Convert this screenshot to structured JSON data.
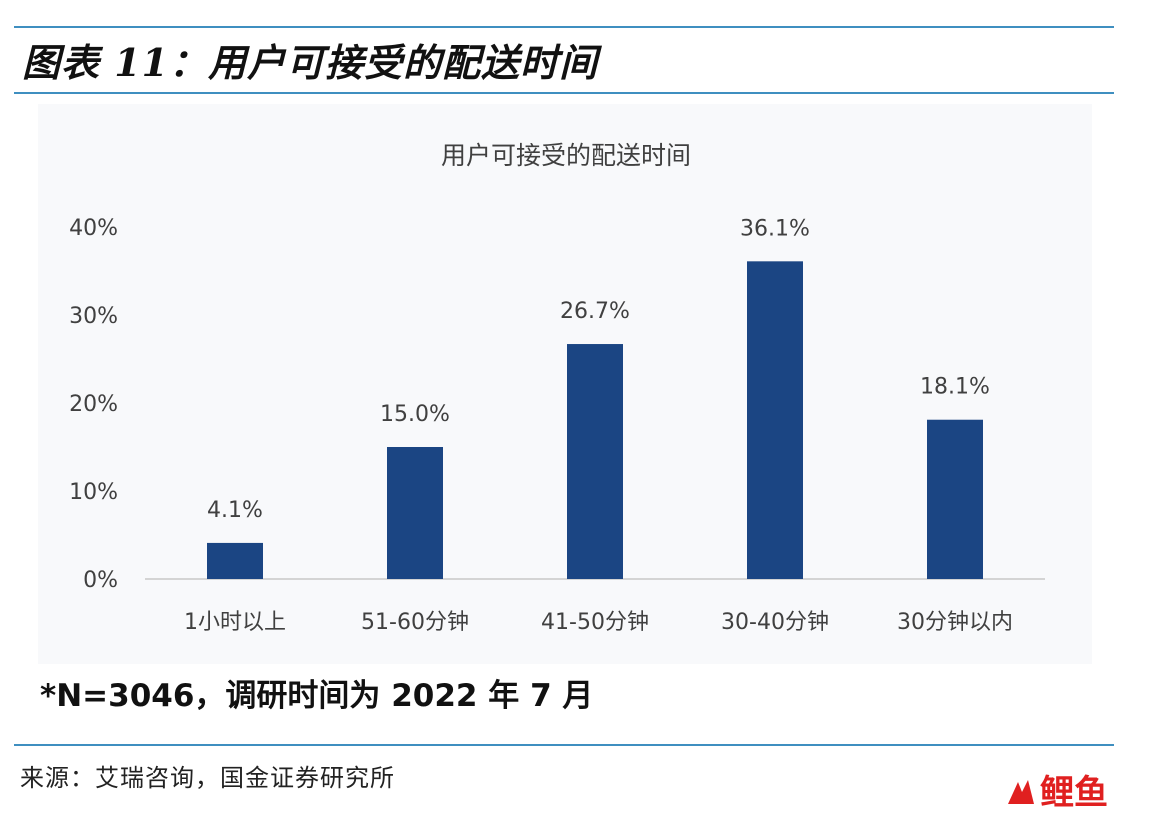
{
  "figure_title": "图表 11：用户可接受的配送时间",
  "note": "*N=3046，调研时间为 2022 年 7 月",
  "source": "来源：艾瑞咨询，国金证券研究所",
  "watermark_text": "鲤鱼",
  "colors": {
    "bar": "#1b4583",
    "rule": "#3f8fc0",
    "axis": "#c8c8c8",
    "text": "#404040"
  },
  "chart_data": {
    "type": "bar",
    "title": "用户可接受的配送时间",
    "categories": [
      "1小时以上",
      "51-60分钟",
      "41-50分钟",
      "30-40分钟",
      "30分钟以内"
    ],
    "values": [
      4.1,
      15.0,
      26.7,
      36.1,
      18.1
    ],
    "value_labels": [
      "4.1%",
      "15.0%",
      "26.7%",
      "36.1%",
      "18.1%"
    ],
    "yticks": [
      0,
      10,
      20,
      30,
      40
    ],
    "ytick_labels": [
      "0%",
      "10%",
      "20%",
      "30%",
      "40%"
    ],
    "ylim": [
      0,
      40
    ],
    "xlabel": "",
    "ylabel": "",
    "grid": false,
    "legend": "none"
  }
}
